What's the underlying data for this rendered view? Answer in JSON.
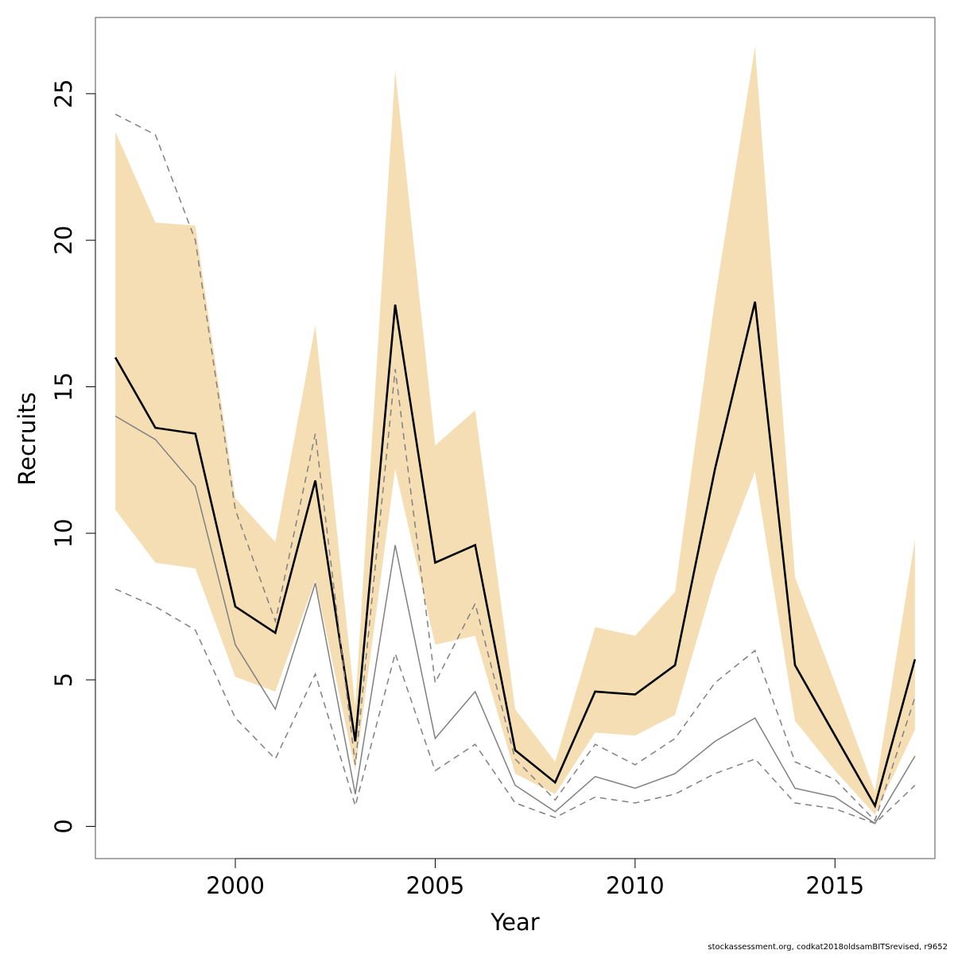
{
  "chart_data": {
    "type": "line",
    "xlabel": "Year",
    "ylabel": "Recruits",
    "xlim": [
      1996.5,
      2017.5
    ],
    "ylim": [
      -1.1,
      27.6
    ],
    "x_ticks": [
      2000,
      2005,
      2010,
      2015
    ],
    "y_ticks": [
      0,
      5,
      10,
      15,
      20,
      25
    ],
    "grid": false,
    "legend": "none",
    "x": [
      1997,
      1998,
      1999,
      2000,
      2001,
      2002,
      2003,
      2004,
      2005,
      2006,
      2007,
      2008,
      2009,
      2010,
      2011,
      2012,
      2013,
      2014,
      2015,
      2016,
      2017
    ],
    "band": {
      "lower": [
        10.8,
        9.0,
        8.8,
        5.1,
        4.6,
        8.4,
        1.9,
        12.2,
        6.2,
        6.5,
        1.8,
        1.1,
        3.2,
        3.1,
        3.8,
        8.5,
        12.1,
        3.6,
        1.9,
        0.4,
        3.3
      ],
      "upper": [
        23.7,
        20.6,
        20.5,
        11.2,
        9.7,
        17.1,
        4.1,
        25.8,
        13.0,
        14.2,
        4.0,
        2.2,
        6.8,
        6.5,
        8.0,
        18.0,
        26.6,
        8.5,
        4.9,
        1.2,
        9.8
      ],
      "color": "#f5deb3"
    },
    "series": [
      {
        "values": [
          16.0,
          13.6,
          13.4,
          7.5,
          6.6,
          11.8,
          2.9,
          17.8,
          9.0,
          9.6,
          2.6,
          1.5,
          4.6,
          4.5,
          5.5,
          12.2,
          17.9,
          5.5,
          3.1,
          0.7,
          5.7
        ],
        "color": "#000000",
        "style": "solid"
      },
      {
        "values": [
          14.0,
          13.2,
          11.6,
          6.2,
          4.0,
          8.3,
          1.1,
          9.6,
          3.0,
          4.6,
          1.4,
          0.5,
          1.7,
          1.3,
          1.8,
          2.9,
          3.7,
          1.3,
          1.0,
          0.1,
          2.4
        ],
        "color": "#808080",
        "style": "solid"
      },
      {
        "values": [
          24.3,
          23.6,
          20.0,
          10.8,
          7.0,
          13.4,
          2.1,
          15.6,
          4.9,
          7.6,
          2.3,
          0.9,
          2.8,
          2.1,
          3.0,
          4.9,
          6.0,
          2.2,
          1.6,
          0.2,
          4.4
        ],
        "color": "#808080",
        "style": "dashed"
      },
      {
        "values": [
          8.1,
          7.5,
          6.7,
          3.7,
          2.3,
          5.2,
          0.7,
          5.9,
          1.9,
          2.8,
          0.8,
          0.3,
          1.0,
          0.8,
          1.1,
          1.8,
          2.3,
          0.8,
          0.6,
          0.1,
          1.4
        ],
        "color": "#808080",
        "style": "dashed"
      }
    ]
  },
  "footnote": "stockassessment.org, codkat2018oldsamBITSrevised, r9652"
}
